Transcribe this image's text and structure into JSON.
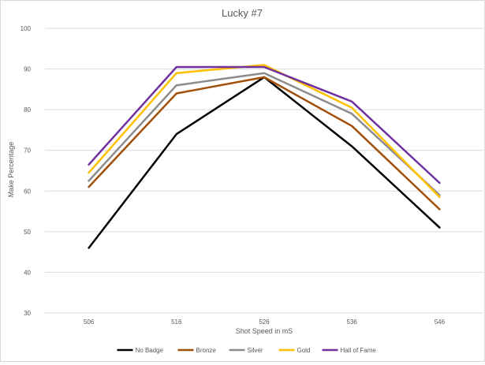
{
  "chart_data": {
    "type": "line",
    "title": "Lucky #7",
    "xlabel": "Shot Speed in mS",
    "ylabel": "Make Percentage",
    "categories": [
      "506",
      "516",
      "526",
      "536",
      "546"
    ],
    "ylim": [
      30,
      100
    ],
    "yticks": [
      "30",
      "40",
      "50",
      "60",
      "70",
      "80",
      "90",
      "100"
    ],
    "grid": true,
    "legend_position": "bottom",
    "series": [
      {
        "name": "No Badge",
        "color": "#000000",
        "values": [
          46,
          74,
          88,
          71,
          51
        ]
      },
      {
        "name": "Bronze",
        "color": "#a0500a",
        "values": [
          61,
          84,
          88,
          76,
          55.5
        ]
      },
      {
        "name": "Silver",
        "color": "#8c8c8c",
        "values": [
          62.5,
          86,
          89,
          79,
          59
        ]
      },
      {
        "name": "Gold",
        "color": "#ffc000",
        "values": [
          64.5,
          89,
          91,
          80.5,
          58.5
        ]
      },
      {
        "name": "Hall of Fame",
        "color": "#7030a0",
        "values": [
          66.5,
          90.5,
          90.5,
          82,
          62
        ]
      }
    ]
  }
}
